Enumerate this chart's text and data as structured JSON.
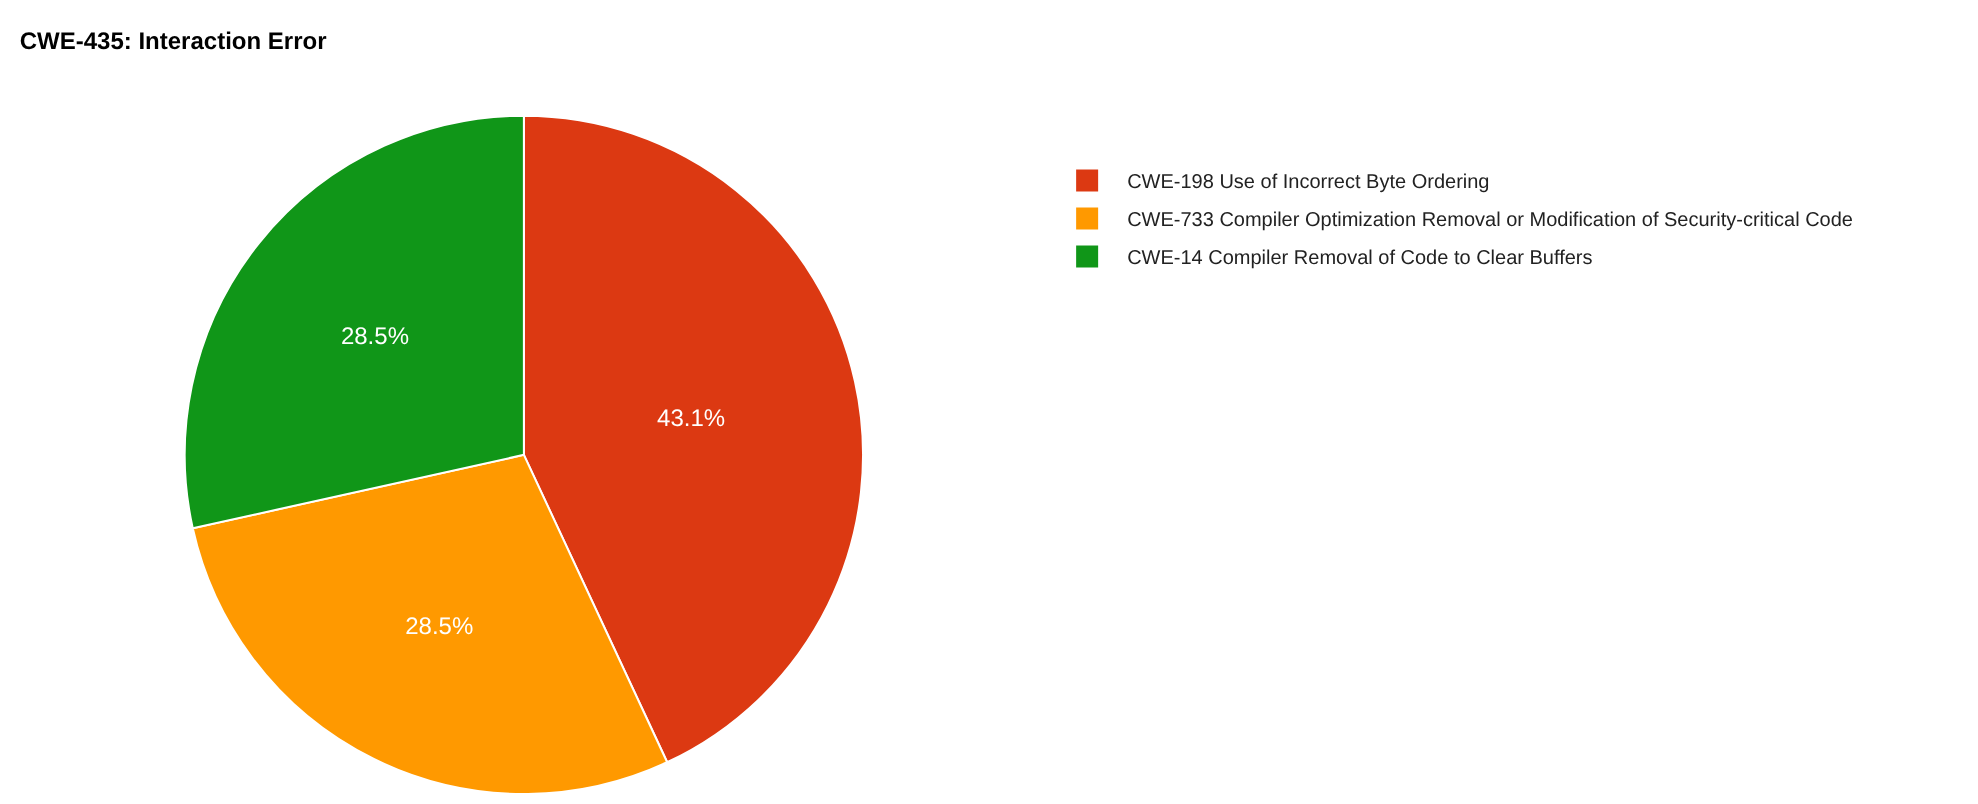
{
  "chart_data": {
    "type": "pie",
    "title": "CWE-435: Interaction Error",
    "categories": [
      "CWE-198 Use of Incorrect Byte Ordering",
      "CWE-733 Compiler Optimization Removal or Modification of Security-critical Code",
      "CWE-14 Compiler Removal of Code to Clear Buffers"
    ],
    "values": [
      43.1,
      28.5,
      28.5
    ],
    "value_labels": [
      "43.1%",
      "28.5%",
      "28.5%"
    ],
    "colors": [
      "#dc3912",
      "#ff9900",
      "#109618"
    ],
    "legend": "right"
  }
}
